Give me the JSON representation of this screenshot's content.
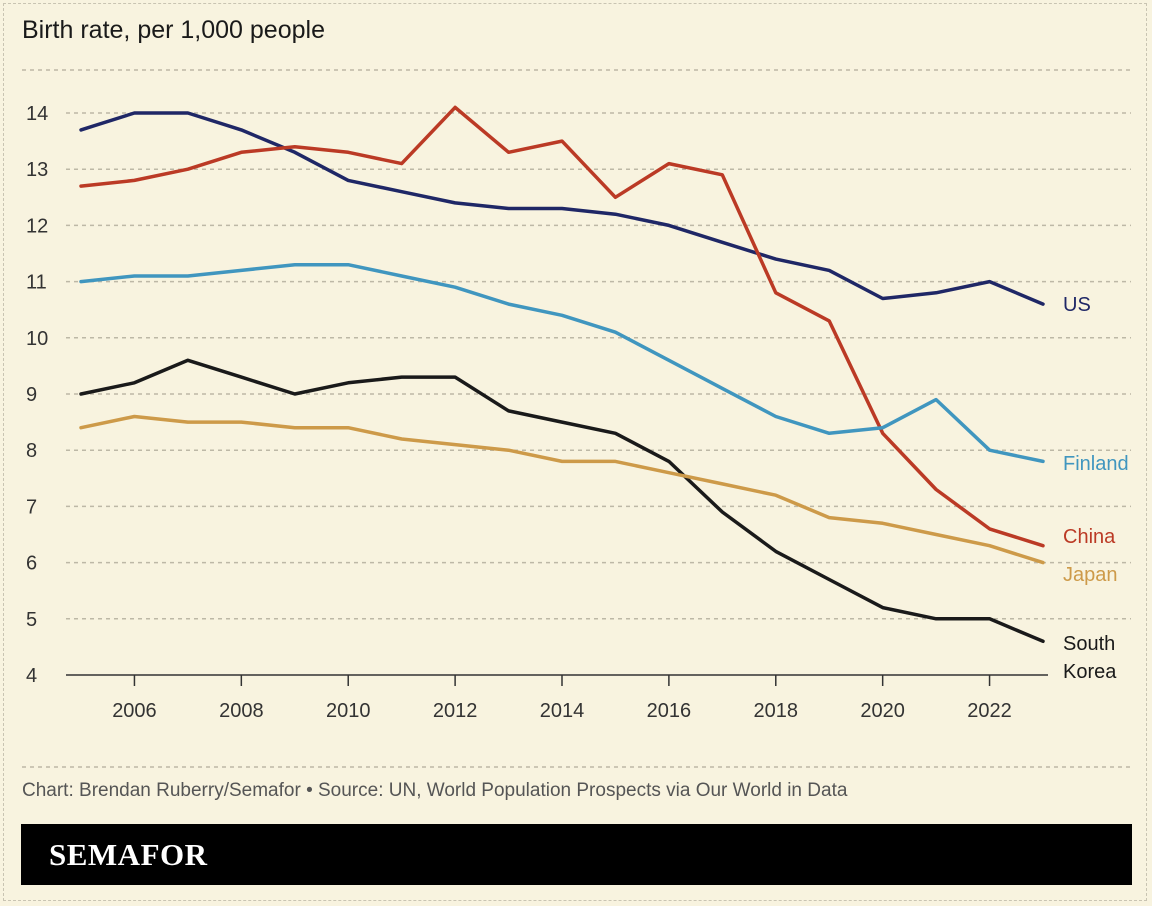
{
  "header": {
    "title": "Birth rate, per 1,000 people"
  },
  "footer": {
    "source": "Chart: Brendan Ruberry/Semafor • Source: UN, World Population Prospects via Our World in Data",
    "brand": "SEMAFOR"
  },
  "chart_data": {
    "type": "line",
    "title": "Birth rate, per 1,000 people",
    "xlabel": "",
    "ylabel": "",
    "xlim": [
      2005,
      2023
    ],
    "ylim": [
      4,
      14
    ],
    "x_ticks": [
      2006,
      2008,
      2010,
      2012,
      2014,
      2016,
      2018,
      2020,
      2022
    ],
    "y_ticks": [
      4,
      5,
      6,
      7,
      8,
      9,
      10,
      11,
      12,
      13,
      14
    ],
    "grid": true,
    "legend": "end-of-line labels",
    "x": [
      2005,
      2006,
      2007,
      2008,
      2009,
      2010,
      2011,
      2012,
      2013,
      2014,
      2015,
      2016,
      2017,
      2018,
      2019,
      2020,
      2021,
      2022,
      2023
    ],
    "series": [
      {
        "name": "US",
        "color": "#1f2766",
        "values": [
          13.7,
          14.0,
          14.0,
          13.7,
          13.3,
          12.8,
          12.6,
          12.4,
          12.3,
          12.3,
          12.2,
          12.0,
          11.7,
          11.4,
          11.2,
          10.7,
          10.8,
          11.0,
          10.6
        ]
      },
      {
        "name": "China",
        "color": "#bb3a25",
        "values": [
          12.7,
          12.8,
          13.0,
          13.3,
          13.4,
          13.3,
          13.1,
          14.1,
          13.3,
          13.5,
          12.5,
          13.1,
          12.9,
          10.8,
          10.3,
          8.3,
          7.3,
          6.6,
          6.3
        ]
      },
      {
        "name": "Finland",
        "color": "#4096bf",
        "values": [
          11.0,
          11.1,
          11.1,
          11.2,
          11.3,
          11.3,
          11.1,
          10.9,
          10.6,
          10.4,
          10.1,
          9.6,
          9.1,
          8.6,
          8.3,
          8.4,
          8.9,
          8.0,
          7.8
        ]
      },
      {
        "name": "South Korea",
        "label_lines": [
          "South",
          "Korea"
        ],
        "color": "#1a1a1a",
        "values": [
          9.0,
          9.2,
          9.6,
          9.3,
          9.0,
          9.2,
          9.3,
          9.3,
          8.7,
          8.5,
          8.3,
          7.8,
          6.9,
          6.2,
          5.7,
          5.2,
          5.0,
          5.0,
          4.6
        ]
      },
      {
        "name": "Japan",
        "color": "#cd9a49",
        "values": [
          8.4,
          8.6,
          8.5,
          8.5,
          8.4,
          8.4,
          8.2,
          8.1,
          8.0,
          7.8,
          7.8,
          7.6,
          7.4,
          7.2,
          6.8,
          6.7,
          6.5,
          6.3,
          6.0
        ]
      }
    ]
  }
}
